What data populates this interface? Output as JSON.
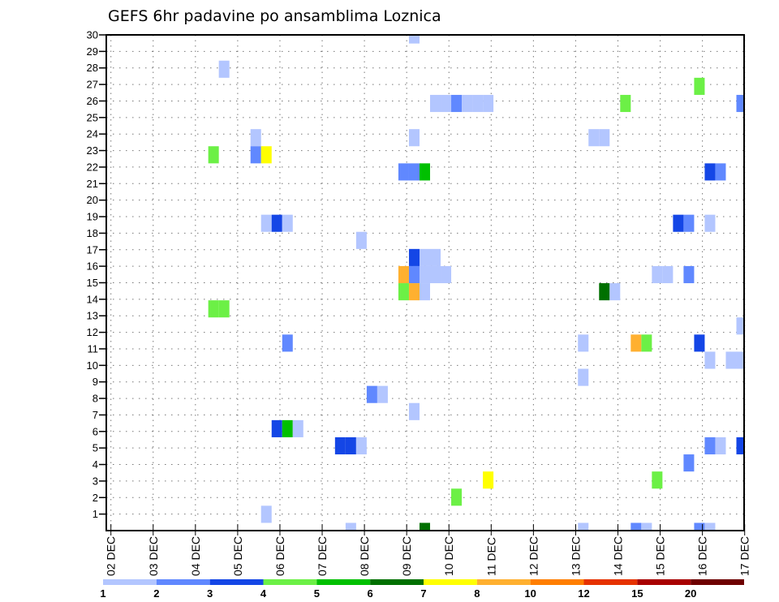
{
  "chart_data": {
    "type": "heatmap",
    "title": "GEFS 6hr padavine po ansamblima Loznica",
    "xlabel": "",
    "ylabel": "",
    "x_ticks": [
      "02 DEC",
      "03 DEC",
      "04 DEC",
      "05 DEC",
      "06 DEC",
      "07 DEC",
      "08 DEC",
      "09 DEC",
      "10 DEC",
      "11 DEC",
      "12 DEC",
      "13 DEC",
      "14 DEC",
      "15 DEC",
      "16 DEC",
      "17 DEC"
    ],
    "y_ticks": [
      "1",
      "2",
      "3",
      "4",
      "5",
      "6",
      "7",
      "8",
      "9",
      "10",
      "11",
      "12",
      "13",
      "14",
      "15",
      "16",
      "17",
      "18",
      "19",
      "20",
      "21",
      "22",
      "23",
      "24",
      "25",
      "26",
      "27",
      "28",
      "29",
      "30"
    ],
    "x_step_hours": 6,
    "grid": true,
    "colorbar": {
      "labels": [
        "1",
        "2",
        "3",
        "4",
        "5",
        "6",
        "7",
        "8",
        "10",
        "12",
        "15",
        "20"
      ],
      "colors": [
        "#b3c6ff",
        "#6088ff",
        "#1446e6",
        "#6cf046",
        "#00c000",
        "#007000",
        "#ffff00",
        "#ffb030",
        "#ff7e00",
        "#e63200",
        "#a80000",
        "#6e0000"
      ]
    },
    "cells_note": "step = 6-hour step index from 02 DEC; member = ensemble member row index (0 = bottom); category = colorbar class (1-based)",
    "cells": [
      [
        28,
        29,
        1
      ],
      [
        10,
        27,
        1
      ],
      [
        55,
        26,
        4
      ],
      [
        30,
        25,
        1
      ],
      [
        31,
        25,
        1
      ],
      [
        32,
        25,
        2
      ],
      [
        33,
        25,
        1
      ],
      [
        34,
        25,
        1
      ],
      [
        35,
        25,
        1
      ],
      [
        48,
        25,
        4
      ],
      [
        59,
        25,
        2
      ],
      [
        13,
        23,
        1
      ],
      [
        28,
        23,
        1
      ],
      [
        45,
        23,
        1
      ],
      [
        46,
        23,
        1
      ],
      [
        9,
        22,
        4
      ],
      [
        13,
        22,
        2
      ],
      [
        14,
        22,
        7
      ],
      [
        27,
        21,
        2
      ],
      [
        28,
        21,
        2
      ],
      [
        29,
        21,
        5
      ],
      [
        56,
        21,
        3
      ],
      [
        57,
        21,
        2
      ],
      [
        14,
        18,
        1
      ],
      [
        15,
        18,
        3
      ],
      [
        16,
        18,
        1
      ],
      [
        53,
        18,
        3
      ],
      [
        54,
        18,
        2
      ],
      [
        56,
        18,
        1
      ],
      [
        23,
        17,
        1
      ],
      [
        28,
        16,
        3
      ],
      [
        29,
        16,
        1
      ],
      [
        30,
        16,
        1
      ],
      [
        27,
        15,
        8
      ],
      [
        28,
        15,
        2
      ],
      [
        29,
        15,
        1
      ],
      [
        30,
        15,
        1
      ],
      [
        31,
        15,
        1
      ],
      [
        51,
        15,
        1
      ],
      [
        52,
        15,
        1
      ],
      [
        54,
        15,
        2
      ],
      [
        27,
        14,
        4
      ],
      [
        28,
        14,
        8
      ],
      [
        29,
        14,
        1
      ],
      [
        46,
        14,
        6
      ],
      [
        47,
        14,
        1
      ],
      [
        9,
        13,
        4
      ],
      [
        10,
        13,
        4
      ],
      [
        59,
        12,
        1
      ],
      [
        16,
        11,
        2
      ],
      [
        44,
        11,
        1
      ],
      [
        49,
        11,
        8
      ],
      [
        50,
        11,
        4
      ],
      [
        55,
        11,
        3
      ],
      [
        56,
        10,
        1
      ],
      [
        58,
        10,
        1
      ],
      [
        59,
        10,
        1
      ],
      [
        44,
        9,
        1
      ],
      [
        24,
        8,
        2
      ],
      [
        25,
        8,
        1
      ],
      [
        28,
        7,
        1
      ],
      [
        15,
        6,
        3
      ],
      [
        16,
        6,
        5
      ],
      [
        17,
        6,
        1
      ],
      [
        21,
        5,
        3
      ],
      [
        22,
        5,
        3
      ],
      [
        23,
        5,
        1
      ],
      [
        56,
        5,
        2
      ],
      [
        57,
        5,
        1
      ],
      [
        59,
        5,
        3
      ],
      [
        54,
        4,
        2
      ],
      [
        35,
        3,
        7
      ],
      [
        51,
        3,
        4
      ],
      [
        32,
        2,
        4
      ],
      [
        14,
        1,
        1
      ],
      [
        22,
        0,
        1
      ],
      [
        29,
        0,
        6
      ],
      [
        44,
        0,
        1
      ],
      [
        49,
        0,
        2
      ],
      [
        50,
        0,
        1
      ],
      [
        55,
        0,
        2
      ],
      [
        56,
        0,
        1
      ]
    ]
  }
}
